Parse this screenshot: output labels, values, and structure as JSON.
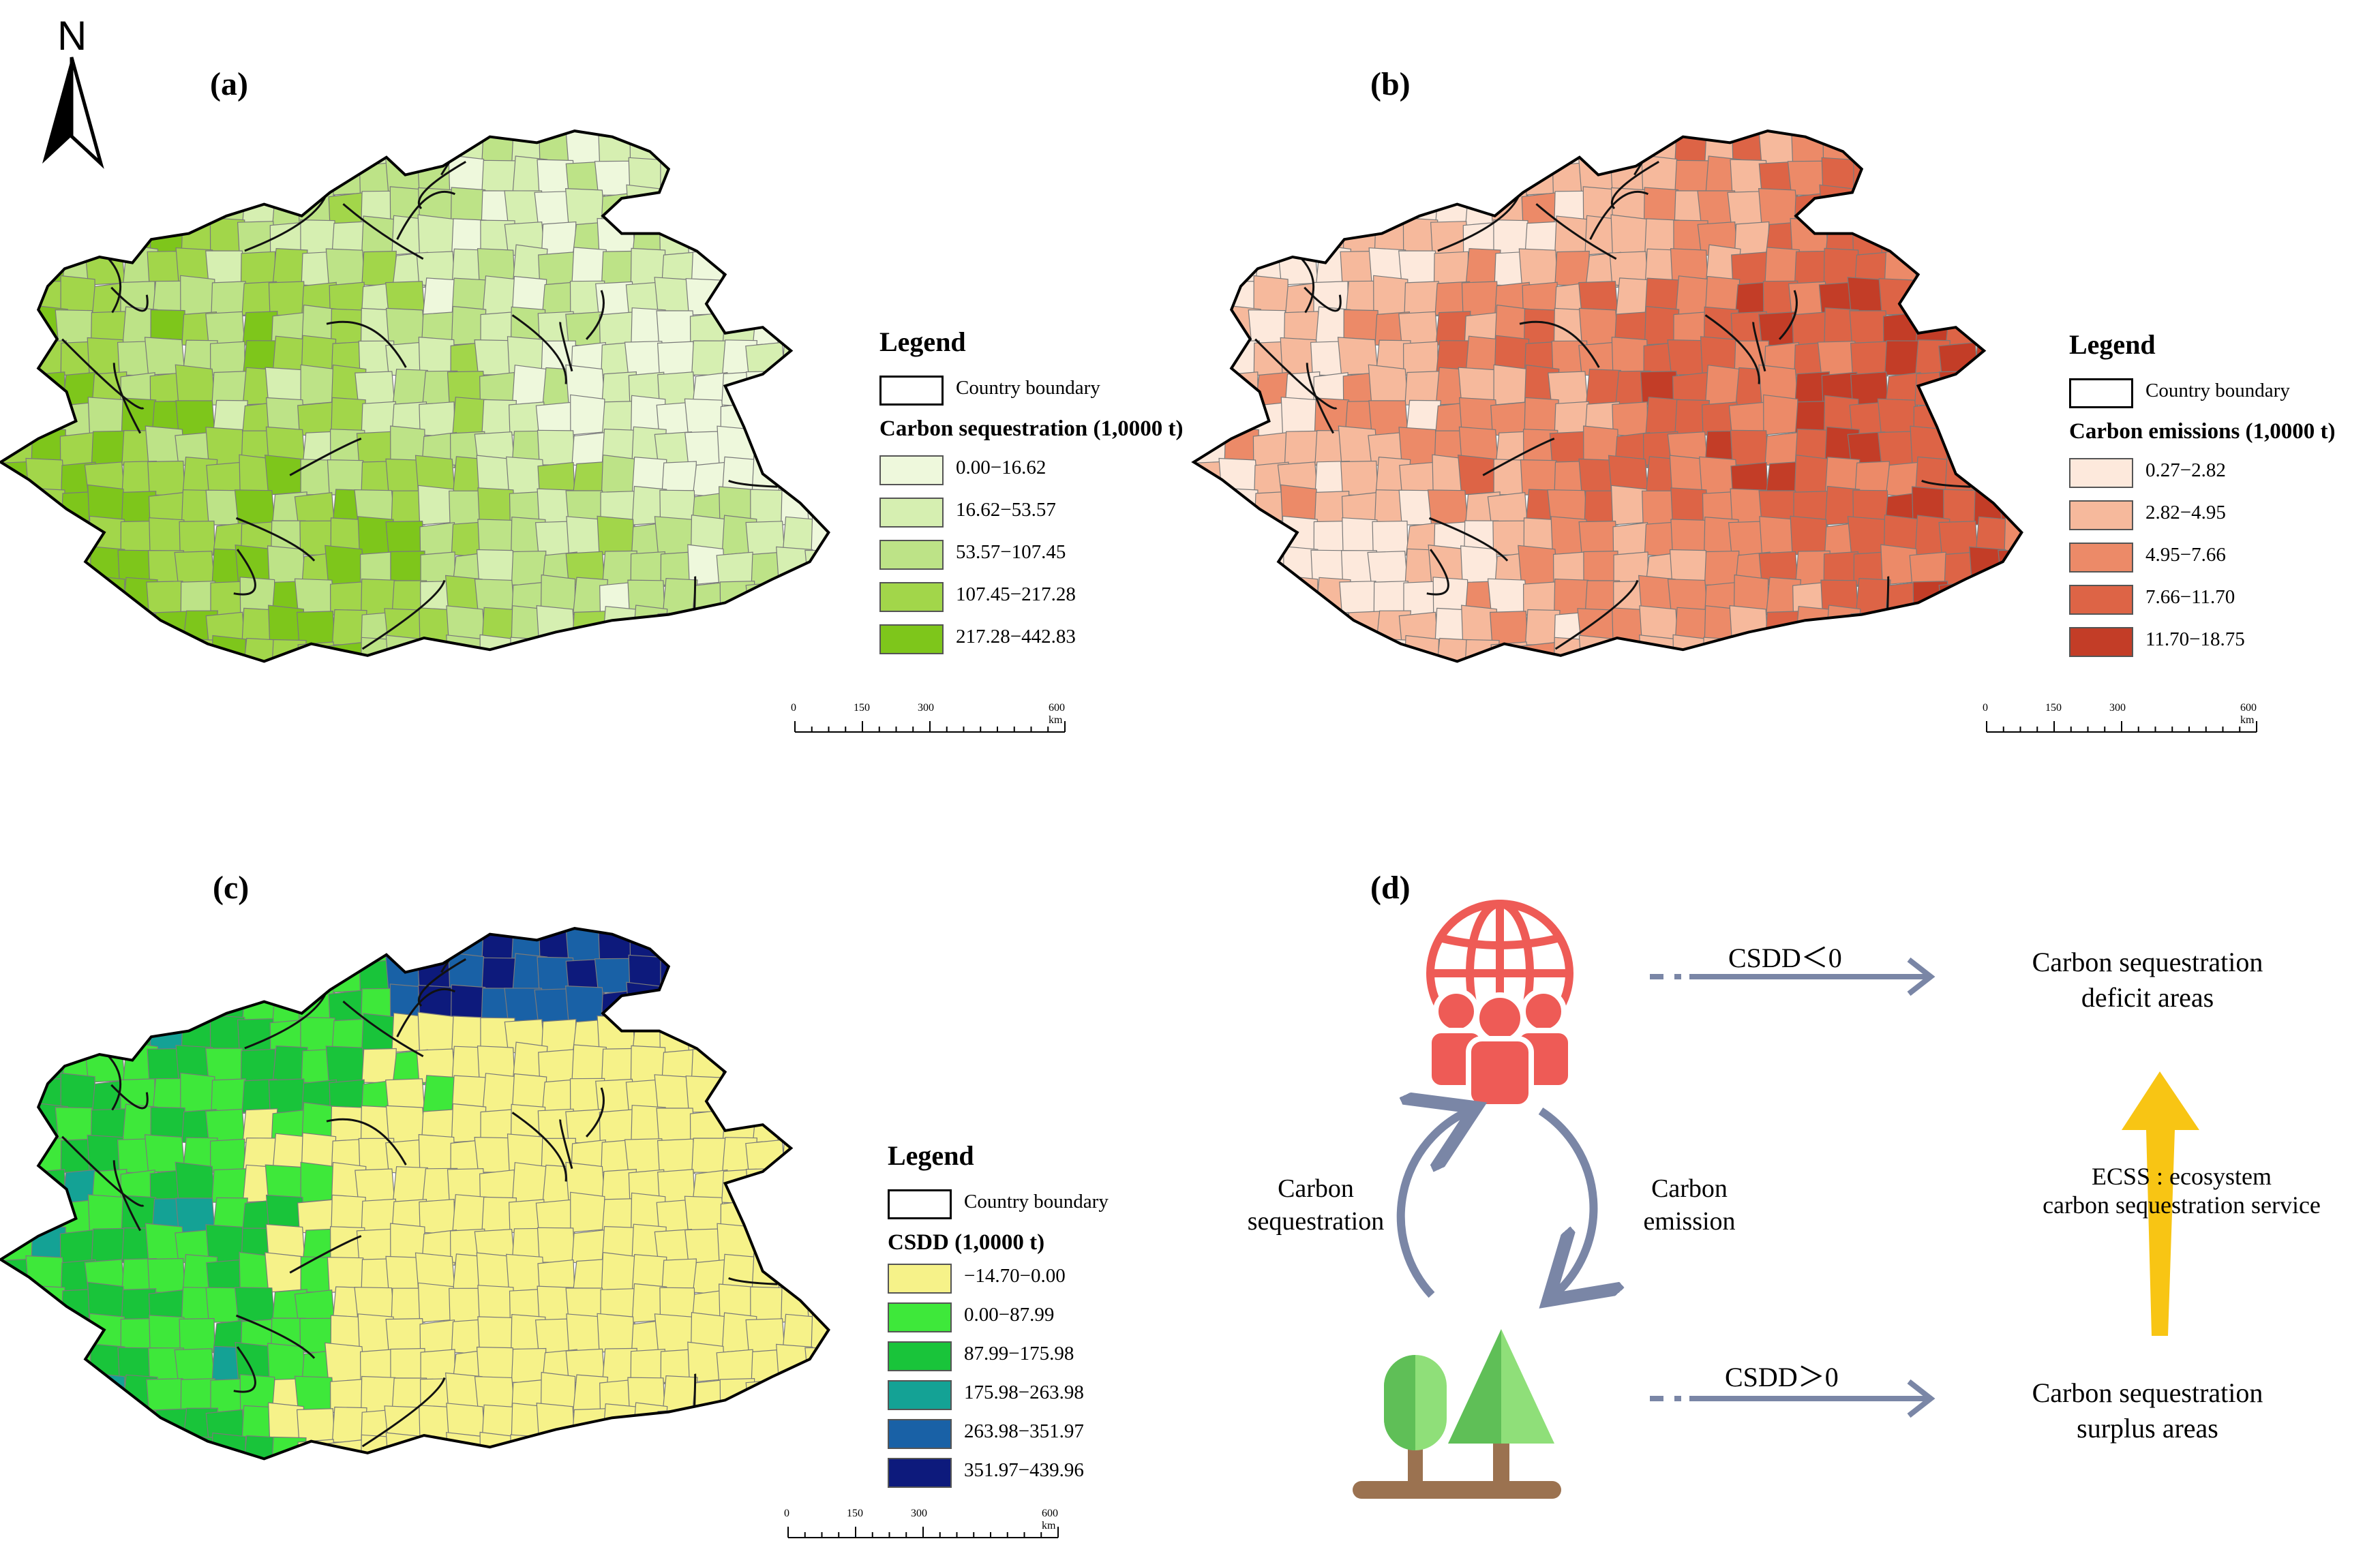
{
  "north_label": "N",
  "panels": {
    "a": {
      "label": "(a)",
      "legend_title": "Legend",
      "boundary_label": "Country boundary",
      "variable": "Carbon sequestration (1,0000 t)",
      "classes": [
        {
          "range": "0.00−16.62",
          "color": "#eef8dc"
        },
        {
          "range": "16.62−53.57",
          "color": "#d6efb1"
        },
        {
          "range": "53.57−107.45",
          "color": "#bde387"
        },
        {
          "range": "107.45−217.28",
          "color": "#a2d64a"
        },
        {
          "range": "217.28−442.83",
          "color": "#7ec61b"
        }
      ],
      "scale_ticks": [
        "0",
        "150",
        "300",
        "600 km"
      ]
    },
    "b": {
      "label": "(b)",
      "legend_title": "Legend",
      "boundary_label": "Country boundary",
      "variable": "Carbon emissions (1,0000 t)",
      "classes": [
        {
          "range": "0.27−2.82",
          "color": "#fde9dc"
        },
        {
          "range": "2.82−4.95",
          "color": "#f6b99c"
        },
        {
          "range": "4.95−7.66",
          "color": "#ec8a68"
        },
        {
          "range": "7.66−11.70",
          "color": "#dd6446"
        },
        {
          "range": "11.70−18.75",
          "color": "#c33d27"
        }
      ],
      "scale_ticks": [
        "0",
        "150",
        "300",
        "600 km"
      ]
    },
    "c": {
      "label": "(c)",
      "legend_title": "Legend",
      "boundary_label": "Country boundary",
      "variable": "CSDD (1,0000 t)",
      "classes": [
        {
          "range": "−14.70−0.00",
          "color": "#f6f289"
        },
        {
          "range": "0.00−87.99",
          "color": "#3ee83a"
        },
        {
          "range": "87.99−175.98",
          "color": "#19c43a"
        },
        {
          "range": "175.98−263.98",
          "color": "#14a295"
        },
        {
          "range": "263.98−351.97",
          "color": "#1961a6"
        },
        {
          "range": "351.97−439.96",
          "color": "#0d1a7c"
        }
      ],
      "scale_ticks": [
        "0",
        "150",
        "300",
        "600 km"
      ]
    },
    "d": {
      "label": "(d)",
      "top_arrow_label": "CSDD＜0",
      "bottom_arrow_label": "CSDD＞0",
      "deficit_line1": "Carbon sequestration",
      "deficit_line2": "deficit areas",
      "surplus_line1": "Carbon sequestration",
      "surplus_line2": "surplus areas",
      "seq_line1": "Carbon",
      "seq_line2": "sequestration",
      "emi_line1": "Carbon",
      "emi_line2": "emission",
      "ecss_line1": "ECSS : ecosystem",
      "ecss_line2": "carbon sequestration service",
      "colors": {
        "people": "#ee5b56",
        "arrow": "#7a86a6",
        "yellow": "#f8c514",
        "trunk": "#9b7250",
        "tree_light": "#8fdf79",
        "tree_dark": "#5fbf57"
      }
    }
  }
}
